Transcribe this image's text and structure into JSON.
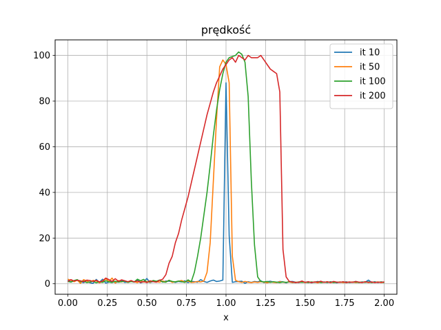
{
  "chart_data": {
    "type": "line",
    "title": "prędkość",
    "xlabel": "x",
    "ylabel": "",
    "xlim": [
      -0.08,
      2.08
    ],
    "ylim": [
      -4.6,
      106.8
    ],
    "grid": true,
    "legend_position": "top-right",
    "x_ticks": [
      0.0,
      0.25,
      0.5,
      0.75,
      1.0,
      1.25,
      1.5,
      1.75,
      2.0
    ],
    "x_tick_labels": [
      "0.00",
      "0.25",
      "0.50",
      "0.75",
      "1.00",
      "1.25",
      "1.50",
      "1.75",
      "2.00"
    ],
    "y_ticks": [
      0,
      20,
      40,
      60,
      80,
      100
    ],
    "y_tick_labels": [
      "0",
      "20",
      "40",
      "60",
      "80",
      "100"
    ],
    "series": [
      {
        "name": "it 10",
        "color": "#1f77b4",
        "x": [
          0.0,
          0.02,
          0.04,
          0.06,
          0.08,
          0.1,
          0.12,
          0.14,
          0.16,
          0.18,
          0.2,
          0.22,
          0.24,
          0.26,
          0.28,
          0.3,
          0.32,
          0.34,
          0.36,
          0.38,
          0.4,
          0.42,
          0.44,
          0.46,
          0.48,
          0.5,
          0.52,
          0.54,
          0.56,
          0.58,
          0.6,
          0.62,
          0.64,
          0.66,
          0.68,
          0.7,
          0.72,
          0.74,
          0.76,
          0.78,
          0.8,
          0.82,
          0.84,
          0.86,
          0.88,
          0.9,
          0.92,
          0.94,
          0.96,
          0.98,
          1.0,
          1.02,
          1.04,
          1.06,
          1.08,
          1.1,
          1.12,
          1.14,
          1.16,
          1.18,
          1.2,
          1.22,
          1.24,
          1.26,
          1.28,
          1.3,
          1.32,
          1.34,
          1.36,
          1.38,
          1.4,
          1.42,
          1.44,
          1.46,
          1.48,
          1.5,
          1.52,
          1.54,
          1.56,
          1.58,
          1.6,
          1.62,
          1.64,
          1.66,
          1.68,
          1.7,
          1.72,
          1.74,
          1.76,
          1.78,
          1.8,
          1.82,
          1.84,
          1.86,
          1.88,
          1.9,
          1.92,
          1.94,
          1.96,
          1.98,
          2.0
        ],
        "y": [
          1.5,
          0.8,
          1.2,
          1.6,
          0.9,
          0.5,
          1.3,
          0.4,
          0.2,
          1.9,
          0.6,
          2.0,
          0.3,
          0.7,
          1.1,
          0.5,
          0.9,
          1.4,
          0.6,
          0.8,
          1.0,
          0.7,
          1.7,
          0.4,
          0.9,
          2.3,
          0.5,
          1.0,
          0.8,
          1.6,
          0.7,
          1.2,
          1.1,
          0.9,
          0.6,
          1.0,
          0.8,
          1.3,
          0.5,
          1.1,
          0.9,
          0.7,
          1.8,
          1.0,
          0.6,
          1.2,
          1.6,
          1.0,
          1.2,
          1.6,
          88.0,
          21.0,
          0.6,
          0.9,
          1.0,
          1.1,
          0.2,
          0.9,
          0.6,
          1.0,
          0.8,
          1.3,
          0.5,
          0.9,
          1.1,
          0.7,
          0.6,
          1.0,
          0.8,
          0.4,
          0.9,
          1.0,
          0.7,
          0.5,
          0.8,
          0.6,
          0.9,
          0.4,
          0.7,
          1.0,
          0.6,
          0.8,
          0.5,
          0.9,
          0.7,
          0.4,
          0.8,
          0.6,
          0.9,
          0.5,
          0.7,
          1.0,
          0.6,
          0.8,
          0.7,
          1.6,
          0.6,
          0.9,
          0.5,
          0.8,
          0.7
        ]
      },
      {
        "name": "it 50",
        "color": "#ff7f0e",
        "x": [
          0.0,
          0.02,
          0.04,
          0.06,
          0.08,
          0.1,
          0.12,
          0.14,
          0.16,
          0.18,
          0.2,
          0.22,
          0.24,
          0.26,
          0.28,
          0.3,
          0.32,
          0.34,
          0.36,
          0.38,
          0.4,
          0.42,
          0.44,
          0.46,
          0.48,
          0.5,
          0.52,
          0.54,
          0.56,
          0.58,
          0.6,
          0.62,
          0.64,
          0.66,
          0.68,
          0.7,
          0.72,
          0.74,
          0.76,
          0.78,
          0.8,
          0.82,
          0.84,
          0.86,
          0.88,
          0.9,
          0.92,
          0.94,
          0.96,
          0.98,
          1.0,
          1.02,
          1.04,
          1.06,
          1.08,
          1.1,
          1.12,
          1.14,
          1.16,
          1.18,
          1.2,
          1.22,
          1.24,
          1.26,
          1.28,
          1.3,
          1.32,
          1.34,
          1.36,
          1.38,
          1.4,
          1.42,
          1.44,
          1.46,
          1.48,
          1.5,
          1.52,
          1.54,
          1.56,
          1.58,
          1.6,
          1.62,
          1.64,
          1.66,
          1.68,
          1.7,
          1.72,
          1.74,
          1.76,
          1.78,
          1.8,
          1.82,
          1.84,
          1.86,
          1.88,
          1.9,
          1.92,
          1.94,
          1.96,
          1.98,
          2.0
        ],
        "y": [
          2.0,
          1.5,
          0.9,
          1.6,
          0.2,
          1.8,
          1.2,
          0.6,
          1.5,
          1.2,
          0.4,
          0.9,
          2.2,
          1.0,
          2.5,
          0.3,
          1.4,
          0.8,
          1.2,
          0.6,
          1.0,
          0.9,
          0.5,
          1.3,
          0.7,
          1.0,
          0.6,
          1.4,
          0.9,
          0.7,
          1.2,
          0.8,
          1.5,
          0.6,
          0.9,
          1.1,
          1.4,
          0.8,
          1.2,
          0.6,
          0.7,
          1.0,
          0.8,
          1.2,
          5.0,
          18.0,
          45.0,
          72.0,
          95.0,
          98.0,
          96.0,
          88.0,
          12.0,
          1.5,
          0.9,
          0.6,
          1.0,
          0.7,
          0.5,
          0.8,
          0.6,
          0.9,
          0.7,
          0.4,
          0.8,
          0.6,
          0.5,
          0.9,
          0.7,
          0.6,
          0.8,
          0.5,
          0.7,
          0.6,
          0.9,
          0.5,
          0.8,
          0.6,
          0.7,
          0.4,
          0.8,
          0.6,
          0.9,
          0.5,
          0.7,
          0.6,
          0.8,
          0.5,
          0.7,
          0.6,
          0.8,
          0.5,
          0.7,
          0.6,
          0.9,
          0.5,
          0.7,
          0.6,
          0.8,
          0.5,
          0.6
        ]
      },
      {
        "name": "it 100",
        "color": "#2ca02c",
        "x": [
          0.0,
          0.02,
          0.04,
          0.06,
          0.08,
          0.1,
          0.12,
          0.14,
          0.16,
          0.18,
          0.2,
          0.22,
          0.24,
          0.26,
          0.28,
          0.3,
          0.32,
          0.34,
          0.36,
          0.38,
          0.4,
          0.42,
          0.44,
          0.46,
          0.48,
          0.5,
          0.52,
          0.54,
          0.56,
          0.58,
          0.6,
          0.62,
          0.64,
          0.66,
          0.68,
          0.7,
          0.72,
          0.74,
          0.76,
          0.78,
          0.8,
          0.82,
          0.84,
          0.86,
          0.88,
          0.9,
          0.92,
          0.94,
          0.96,
          0.98,
          1.0,
          1.02,
          1.04,
          1.06,
          1.08,
          1.1,
          1.12,
          1.14,
          1.16,
          1.18,
          1.2,
          1.22,
          1.24,
          1.26,
          1.28,
          1.3,
          1.32,
          1.34,
          1.36,
          1.38,
          1.4,
          1.42,
          1.44,
          1.46,
          1.48,
          1.5,
          1.52,
          1.54,
          1.56,
          1.58,
          1.6,
          1.62,
          1.64,
          1.66,
          1.68,
          1.7,
          1.72,
          1.74,
          1.76,
          1.78,
          1.8,
          1.82,
          1.84,
          1.86,
          1.88,
          1.9,
          1.92,
          1.94,
          1.96,
          1.98,
          2.0
        ],
        "y": [
          1.0,
          0.7,
          1.4,
          1.8,
          0.9,
          1.2,
          0.5,
          0.8,
          1.1,
          0.4,
          0.9,
          0.6,
          1.3,
          0.8,
          0.5,
          1.1,
          0.7,
          0.9,
          1.2,
          0.6,
          1.0,
          0.8,
          2.0,
          1.3,
          1.9,
          0.6,
          0.9,
          1.4,
          1.1,
          1.6,
          0.8,
          0.7,
          1.5,
          1.0,
          0.8,
          1.2,
          0.9,
          0.6,
          1.7,
          0.8,
          5.0,
          12.0,
          20.0,
          30.0,
          40.0,
          52.0,
          65.0,
          76.0,
          85.0,
          92.0,
          97.0,
          99.0,
          99.5,
          100.0,
          101.5,
          100.5,
          97.0,
          82.0,
          45.0,
          17.0,
          3.0,
          1.0,
          0.8,
          1.0,
          0.6,
          0.9,
          0.7,
          0.5,
          0.8,
          0.6,
          0.9,
          0.7,
          0.5,
          0.8,
          0.6,
          0.7,
          0.5,
          0.8,
          0.6,
          0.9,
          0.5,
          0.7,
          0.6,
          0.8,
          0.5,
          0.7,
          0.6,
          0.8,
          0.5,
          0.7,
          0.6,
          0.8,
          0.5,
          0.7,
          0.6,
          0.8,
          0.5,
          0.7,
          0.6,
          0.8,
          0.5
        ]
      },
      {
        "name": "it 200",
        "color": "#d62728",
        "x": [
          0.0,
          0.02,
          0.04,
          0.06,
          0.08,
          0.1,
          0.12,
          0.14,
          0.16,
          0.18,
          0.2,
          0.22,
          0.24,
          0.26,
          0.28,
          0.3,
          0.32,
          0.34,
          0.36,
          0.38,
          0.4,
          0.42,
          0.44,
          0.46,
          0.48,
          0.5,
          0.52,
          0.54,
          0.56,
          0.58,
          0.6,
          0.62,
          0.64,
          0.66,
          0.68,
          0.7,
          0.72,
          0.74,
          0.76,
          0.78,
          0.8,
          0.82,
          0.84,
          0.86,
          0.88,
          0.9,
          0.92,
          0.94,
          0.96,
          0.98,
          1.0,
          1.02,
          1.04,
          1.06,
          1.08,
          1.1,
          1.12,
          1.14,
          1.16,
          1.18,
          1.2,
          1.22,
          1.24,
          1.26,
          1.28,
          1.3,
          1.32,
          1.34,
          1.36,
          1.38,
          1.4,
          1.42,
          1.44,
          1.46,
          1.48,
          1.5,
          1.52,
          1.54,
          1.56,
          1.58,
          1.6,
          1.62,
          1.64,
          1.66,
          1.68,
          1.7,
          1.72,
          1.74,
          1.76,
          1.78,
          1.8,
          1.82,
          1.84,
          1.86,
          1.88,
          1.9,
          1.92,
          1.94,
          1.96,
          1.98,
          2.0
        ],
        "y": [
          1.0,
          1.8,
          1.2,
          1.5,
          1.3,
          0.9,
          1.6,
          1.4,
          1.0,
          1.5,
          0.8,
          1.2,
          2.5,
          1.8,
          1.0,
          2.2,
          1.1,
          1.7,
          1.3,
          0.9,
          1.4,
          0.8,
          1.2,
          0.6,
          1.0,
          0.5,
          1.3,
          0.9,
          0.7,
          1.5,
          2.0,
          4.0,
          9.0,
          12.0,
          18.0,
          22.0,
          28.0,
          33.0,
          38.0,
          44.0,
          50.0,
          56.0,
          62.0,
          68.0,
          74.0,
          79.0,
          84.0,
          88.0,
          91.0,
          94.0,
          96.0,
          98.0,
          99.0,
          97.0,
          100.0,
          99.0,
          98.0,
          100.0,
          99.0,
          99.0,
          99.0,
          100.0,
          98.0,
          96.0,
          94.0,
          93.0,
          92.0,
          84.0,
          15.0,
          3.0,
          1.0,
          0.8,
          0.5,
          0.7,
          1.2,
          0.6,
          0.9,
          0.5,
          0.8,
          0.7,
          1.1,
          0.6,
          0.9,
          0.5,
          1.0,
          0.7,
          0.6,
          0.9,
          0.5,
          0.8,
          0.6,
          1.0,
          0.7,
          0.5,
          0.9,
          0.6,
          0.8,
          0.5,
          0.7,
          0.6,
          0.8
        ]
      }
    ]
  }
}
